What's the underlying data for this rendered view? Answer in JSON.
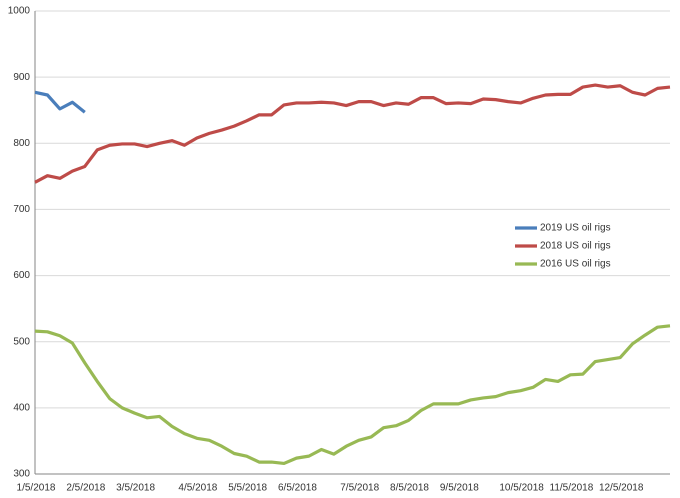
{
  "chart_data": {
    "type": "line",
    "categories": [
      "1/5/2018",
      null,
      null,
      null,
      "2/5/2018",
      null,
      null,
      null,
      "3/5/2018",
      null,
      null,
      null,
      null,
      "4/5/2018",
      null,
      null,
      null,
      "5/5/2018",
      null,
      null,
      null,
      "6/5/2018",
      null,
      null,
      null,
      null,
      "7/5/2018",
      null,
      null,
      null,
      "8/5/2018",
      null,
      null,
      null,
      "9/5/2018",
      null,
      null,
      null,
      null,
      "10/5/2018",
      null,
      null,
      null,
      "11/5/2018",
      null,
      null,
      null,
      "12/5/2018",
      null,
      null,
      null,
      null
    ],
    "series": [
      {
        "name": "2019 US oil rigs",
        "color": "#4a7ebb",
        "values": [
          877,
          873,
          852,
          862,
          847,
          null,
          null,
          null,
          null,
          null,
          null,
          null,
          null,
          null,
          null,
          null,
          null,
          null,
          null,
          null,
          null,
          null,
          null,
          null,
          null,
          null,
          null,
          null,
          null,
          null,
          null,
          null,
          null,
          null,
          null,
          null,
          null,
          null,
          null,
          null,
          null,
          null,
          null,
          null,
          null,
          null,
          null,
          null,
          null,
          null,
          null,
          null
        ]
      },
      {
        "name": "2018 US oil rigs",
        "color": "#be4b48",
        "values": [
          741,
          751,
          747,
          758,
          765,
          790,
          797,
          799,
          799,
          795,
          800,
          804,
          797,
          808,
          815,
          820,
          826,
          834,
          843,
          843,
          858,
          861,
          861,
          862,
          861,
          857,
          863,
          863,
          857,
          861,
          859,
          869,
          869,
          860,
          861,
          860,
          867,
          866,
          863,
          861,
          868,
          873,
          874,
          874,
          885,
          888,
          885,
          887,
          877,
          873,
          883,
          885
        ]
      },
      {
        "name": "2016 US oil rigs",
        "color": "#98b954",
        "values": [
          516,
          515,
          509,
          498,
          468,
          440,
          414,
          400,
          392,
          385,
          387,
          372,
          361,
          354,
          351,
          342,
          331,
          327,
          318,
          318,
          316,
          324,
          327,
          337,
          330,
          342,
          351,
          356,
          370,
          373,
          381,
          396,
          406,
          406,
          406,
          412,
          415,
          417,
          423,
          426,
          431,
          443,
          440,
          450,
          451,
          470,
          473,
          476,
          497,
          510,
          522,
          524
        ]
      }
    ],
    "ylim": [
      300,
      1000
    ],
    "yticks": [
      300,
      400,
      500,
      600,
      700,
      800,
      900,
      1000
    ],
    "grid": true,
    "legend": "right"
  }
}
